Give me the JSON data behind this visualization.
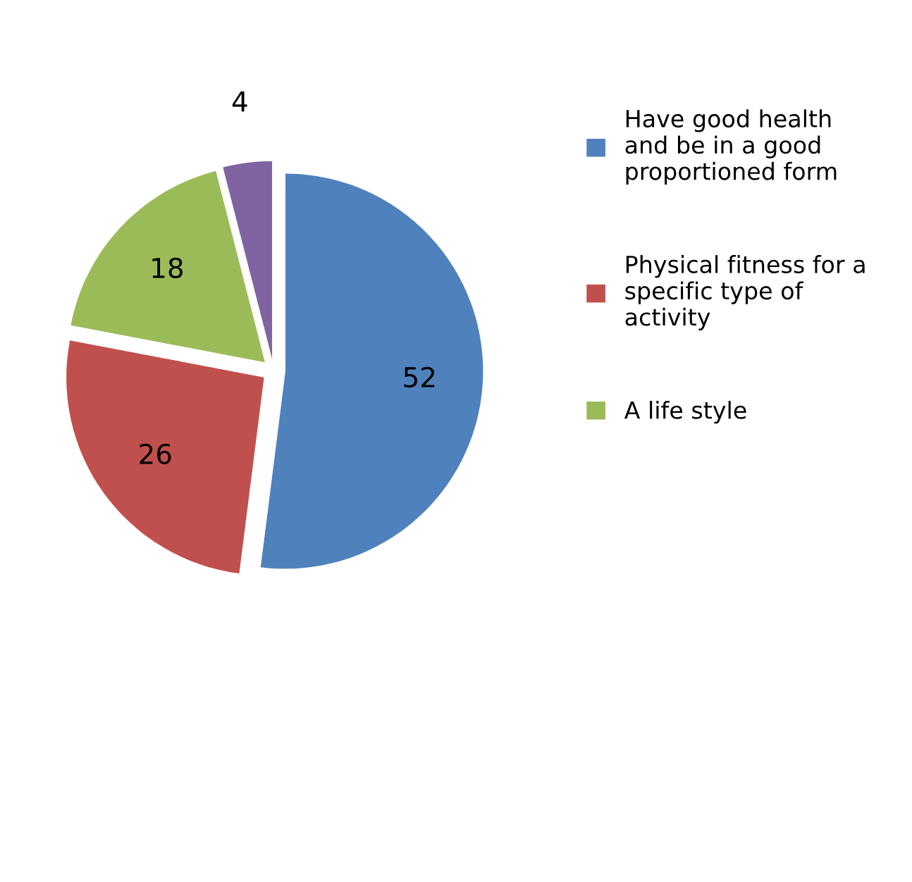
{
  "chart_data": {
    "type": "pie",
    "categories": [
      "Have good health and be in a good proportioned form",
      "Physical fitness for a specific type of activity",
      "A life style",
      null
    ],
    "values": [
      52,
      26,
      18,
      4
    ],
    "colors": [
      "#4f81bd",
      "#c0504d",
      "#9bbb59",
      "#8064a2"
    ],
    "data_labels": true,
    "legend": "right"
  }
}
